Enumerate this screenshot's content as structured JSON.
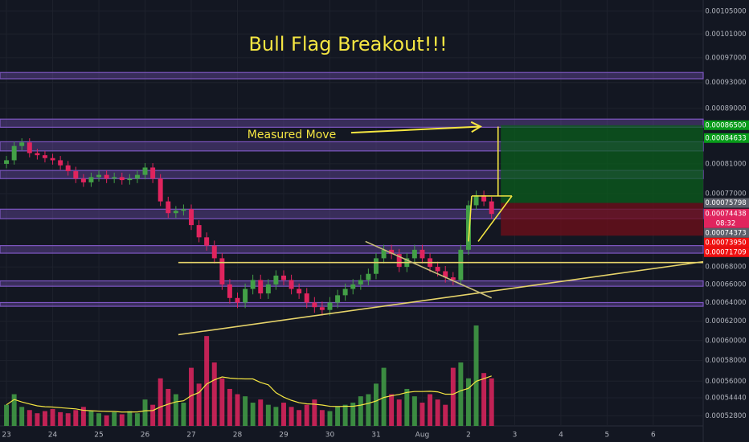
{
  "chart_data": {
    "type": "candlestick",
    "title": "Bull Flag Breakout!!!",
    "annotation": "Measured Move",
    "log": true,
    "grid": true,
    "up_color": "#43a047",
    "down_color": "#e0245e",
    "volume_ma_color": "#f5e642",
    "x": [
      0,
      0.167,
      0.333,
      0.5,
      0.667,
      0.833,
      1,
      1.167,
      1.333,
      1.5,
      1.667,
      1.833,
      2,
      2.167,
      2.333,
      2.5,
      2.667,
      2.833,
      3,
      3.167,
      3.333,
      3.5,
      3.667,
      3.833,
      4,
      4.167,
      4.333,
      4.5,
      4.667,
      4.833,
      5,
      5.167,
      5.333,
      5.5,
      5.667,
      5.833,
      6,
      6.167,
      6.333,
      6.5,
      6.667,
      6.833,
      7,
      7.167,
      7.333,
      7.5,
      7.667,
      7.833,
      8,
      8.167,
      8.333,
      8.5,
      8.667,
      8.833,
      9,
      9.167,
      9.333,
      9.5,
      9.667,
      9.833,
      10,
      10.167,
      10.333,
      10.5
    ],
    "open": [
      0.00081,
      0.000815,
      0.000835,
      0.00084,
      0.000825,
      0.000822,
      0.000818,
      0.000815,
      0.000808,
      0.0008,
      0.00079,
      0.000785,
      0.000792,
      0.000795,
      0.00079,
      0.000792,
      0.000788,
      0.00079,
      0.000795,
      0.000805,
      0.00079,
      0.00076,
      0.000745,
      0.000748,
      0.00075,
      0.00073,
      0.000715,
      0.000705,
      0.00069,
      0.00066,
      0.000645,
      0.00064,
      0.000655,
      0.000665,
      0.00065,
      0.00066,
      0.00067,
      0.000665,
      0.000655,
      0.00065,
      0.00064,
      0.000635,
      0.000632,
      0.00064,
      0.000648,
      0.000655,
      0.00066,
      0.000665,
      0.000672,
      0.00069,
      0.0007,
      0.000695,
      0.00068,
      0.00069,
      0.0007,
      0.00069,
      0.00068,
      0.000675,
      0.000668,
      0.000665,
      0.0007,
      0.000755,
      0.000768,
      0.00076
    ],
    "high": [
      0.000821,
      0.000841,
      0.000846,
      0.000846,
      0.000831,
      0.000828,
      0.000824,
      0.000821,
      0.000814,
      0.000806,
      0.000796,
      0.000798,
      0.000801,
      0.000801,
      0.000798,
      0.000798,
      0.000796,
      0.000801,
      0.000811,
      0.000811,
      0.000796,
      0.000766,
      0.000754,
      0.000756,
      0.000756,
      0.000736,
      0.000721,
      0.000711,
      0.000696,
      0.000666,
      0.000651,
      0.000661,
      0.000671,
      0.000671,
      0.000666,
      0.000676,
      0.000676,
      0.000671,
      0.000661,
      0.000656,
      0.000646,
      0.000641,
      0.000646,
      0.000654,
      0.000661,
      0.000666,
      0.000671,
      0.000678,
      0.000696,
      0.000706,
      0.000706,
      0.000701,
      0.000696,
      0.000706,
      0.000706,
      0.000696,
      0.000686,
      0.000681,
      0.000674,
      0.000706,
      0.000761,
      0.000774,
      0.000774,
      0.000766
    ],
    "low": [
      0.000804,
      0.000809,
      0.000829,
      0.000819,
      0.000816,
      0.000812,
      0.000809,
      0.000802,
      0.000794,
      0.000784,
      0.000779,
      0.000779,
      0.000786,
      0.000784,
      0.000784,
      0.000782,
      0.000782,
      0.000784,
      0.000789,
      0.000784,
      0.000754,
      0.000739,
      0.000739,
      0.000742,
      0.000724,
      0.000709,
      0.000699,
      0.000684,
      0.000654,
      0.000639,
      0.000634,
      0.000634,
      0.000649,
      0.000644,
      0.000644,
      0.000654,
      0.000659,
      0.000649,
      0.000644,
      0.000634,
      0.000629,
      0.000626,
      0.000626,
      0.000634,
      0.000642,
      0.000649,
      0.000654,
      0.000659,
      0.000666,
      0.000684,
      0.000689,
      0.000674,
      0.000674,
      0.000684,
      0.000684,
      0.000674,
      0.000669,
      0.000662,
      0.000659,
      0.000659,
      0.000694,
      0.000749,
      0.000754,
      0.000738
    ],
    "close": [
      0.000815,
      0.000835,
      0.00084,
      0.000825,
      0.000822,
      0.000818,
      0.000815,
      0.000808,
      0.0008,
      0.00079,
      0.000785,
      0.000792,
      0.000795,
      0.00079,
      0.000792,
      0.000788,
      0.00079,
      0.000795,
      0.000805,
      0.00079,
      0.00076,
      0.000745,
      0.000748,
      0.00075,
      0.00073,
      0.000715,
      0.000705,
      0.00069,
      0.00066,
      0.000645,
      0.00064,
      0.000655,
      0.000665,
      0.00065,
      0.00066,
      0.00067,
      0.000665,
      0.000655,
      0.00065,
      0.00064,
      0.000635,
      0.000632,
      0.00064,
      0.000648,
      0.000655,
      0.00066,
      0.000665,
      0.000672,
      0.00069,
      0.0007,
      0.000695,
      0.00068,
      0.00069,
      0.0007,
      0.00069,
      0.00068,
      0.000675,
      0.000668,
      0.000665,
      0.0007,
      0.000755,
      0.000768,
      0.00076,
      0.000744
    ],
    "volume": [
      20,
      30,
      18,
      15,
      12,
      14,
      16,
      13,
      12,
      15,
      18,
      14,
      12,
      10,
      13,
      11,
      14,
      12,
      25,
      20,
      45,
      35,
      30,
      22,
      55,
      40,
      85,
      60,
      45,
      35,
      30,
      28,
      22,
      25,
      20,
      18,
      22,
      18,
      15,
      20,
      25,
      15,
      14,
      18,
      20,
      22,
      28,
      30,
      40,
      55,
      30,
      25,
      35,
      28,
      22,
      30,
      25,
      20,
      55,
      60,
      45,
      95,
      50,
      45
    ],
    "xlim": [
      -0.14,
      15.08
    ],
    "xticks": [
      {
        "value": 0,
        "label": "23"
      },
      {
        "value": 1,
        "label": "24"
      },
      {
        "value": 2,
        "label": "25"
      },
      {
        "value": 3,
        "label": "26"
      },
      {
        "value": 4,
        "label": "27"
      },
      {
        "value": 5,
        "label": "28"
      },
      {
        "value": 6,
        "label": "29"
      },
      {
        "value": 7,
        "label": "30"
      },
      {
        "value": 8,
        "label": "31"
      },
      {
        "value": 9,
        "label": "Aug"
      },
      {
        "value": 10,
        "label": "2"
      },
      {
        "value": 11,
        "label": "3"
      },
      {
        "value": 12,
        "label": "4"
      },
      {
        "value": 13,
        "label": "5"
      },
      {
        "value": 14,
        "label": "6"
      }
    ],
    "ylim": [
      0.000519,
      0.00107
    ],
    "yticks": [
      {
        "value": 0.00105,
        "label": "0.00105000"
      },
      {
        "value": 0.00101,
        "label": "0.00101000"
      },
      {
        "value": 0.00097,
        "label": "0.00097000"
      },
      {
        "value": 0.00093,
        "label": "0.00093000"
      },
      {
        "value": 0.00089,
        "label": "0.00089000"
      },
      {
        "value": 0.00081,
        "label": "0.00081000"
      },
      {
        "value": 0.00077,
        "label": "0.00077000"
      },
      {
        "value": 0.00068,
        "label": "0.00068000"
      },
      {
        "value": 0.00066,
        "label": "0.00066000"
      },
      {
        "value": 0.00064,
        "label": "0.00064000"
      },
      {
        "value": 0.00062,
        "label": "0.00062000"
      },
      {
        "value": 0.0006,
        "label": "0.00060000"
      },
      {
        "value": 0.00058,
        "label": "0.00058000"
      },
      {
        "value": 0.00056,
        "label": "0.00056000"
      },
      {
        "value": 0.0005444,
        "label": "0.00054440"
      },
      {
        "value": 0.000528,
        "label": "0.00052800"
      }
    ],
    "zone_color": "#7e57c2",
    "zones": [
      [
        0.000936,
        0.000946
      ],
      [
        0.000862,
        0.000874
      ],
      [
        0.000828,
        0.000841
      ],
      [
        0.00079,
        0.000801
      ],
      [
        0.000738,
        0.00075
      ],
      [
        0.000696,
        0.000705
      ],
      [
        0.000658,
        0.000664
      ],
      [
        0.000636,
        0.00064
      ]
    ],
    "lines": [
      {
        "x": [
          3.72,
          15.08
        ],
        "y": [
          0.000685,
          0.000685
        ],
        "color": "#e6d36a"
      },
      {
        "x": [
          3.72,
          15.08
        ],
        "y": [
          0.000606,
          0.000686
        ],
        "color": "#e6d36a"
      },
      {
        "x": [
          7.77,
          10.5
        ],
        "y": [
          0.00071,
          0.000645
        ],
        "color": "#c9bd7a"
      },
      {
        "x": [
          10.0,
          10.07
        ],
        "y": [
          0.00071,
          0.000767
        ],
        "color": "#f5e642"
      },
      {
        "x": [
          10.07,
          10.94
        ],
        "y": [
          0.000767,
          0.000767
        ],
        "color": "#f5e642"
      },
      {
        "x": [
          10.21,
          10.94
        ],
        "y": [
          0.00071,
          0.000767
        ],
        "color": "#f5e642"
      },
      {
        "x": [
          10.64,
          10.64
        ],
        "y": [
          0.000863,
          0.000767
        ],
        "color": "#f5e642"
      }
    ],
    "arrow": {
      "x": [
        7.46,
        10.26
      ],
      "y": [
        0.000854,
        0.000863
      ],
      "color": "#f5e642"
    },
    "position": {
      "x": [
        10.7,
        15.08
      ],
      "entry": 0.000758,
      "target": 0.000865,
      "stop": 0.000717
    },
    "price_tags": [
      {
        "value": 0.000865,
        "label": "0.00086500",
        "color": "#089c1a"
      },
      {
        "value": 0.00084633,
        "label": "0.00084633",
        "color": "#089c1a"
      },
      {
        "value": 0.00075798,
        "label": "0.00075798",
        "color": "#5d606b"
      },
      {
        "value": 0.00074438,
        "label": "0.00074438",
        "color": "#e0245e",
        "countdown": "08:32"
      },
      {
        "value": 0.00074373,
        "label": "0.00074373",
        "color": "#5d606b"
      },
      {
        "value": 0.0007395,
        "label": "0.00073950",
        "color": "#f01010"
      },
      {
        "value": 0.00071709,
        "label": "0.00071709",
        "color": "#f01010"
      }
    ]
  }
}
